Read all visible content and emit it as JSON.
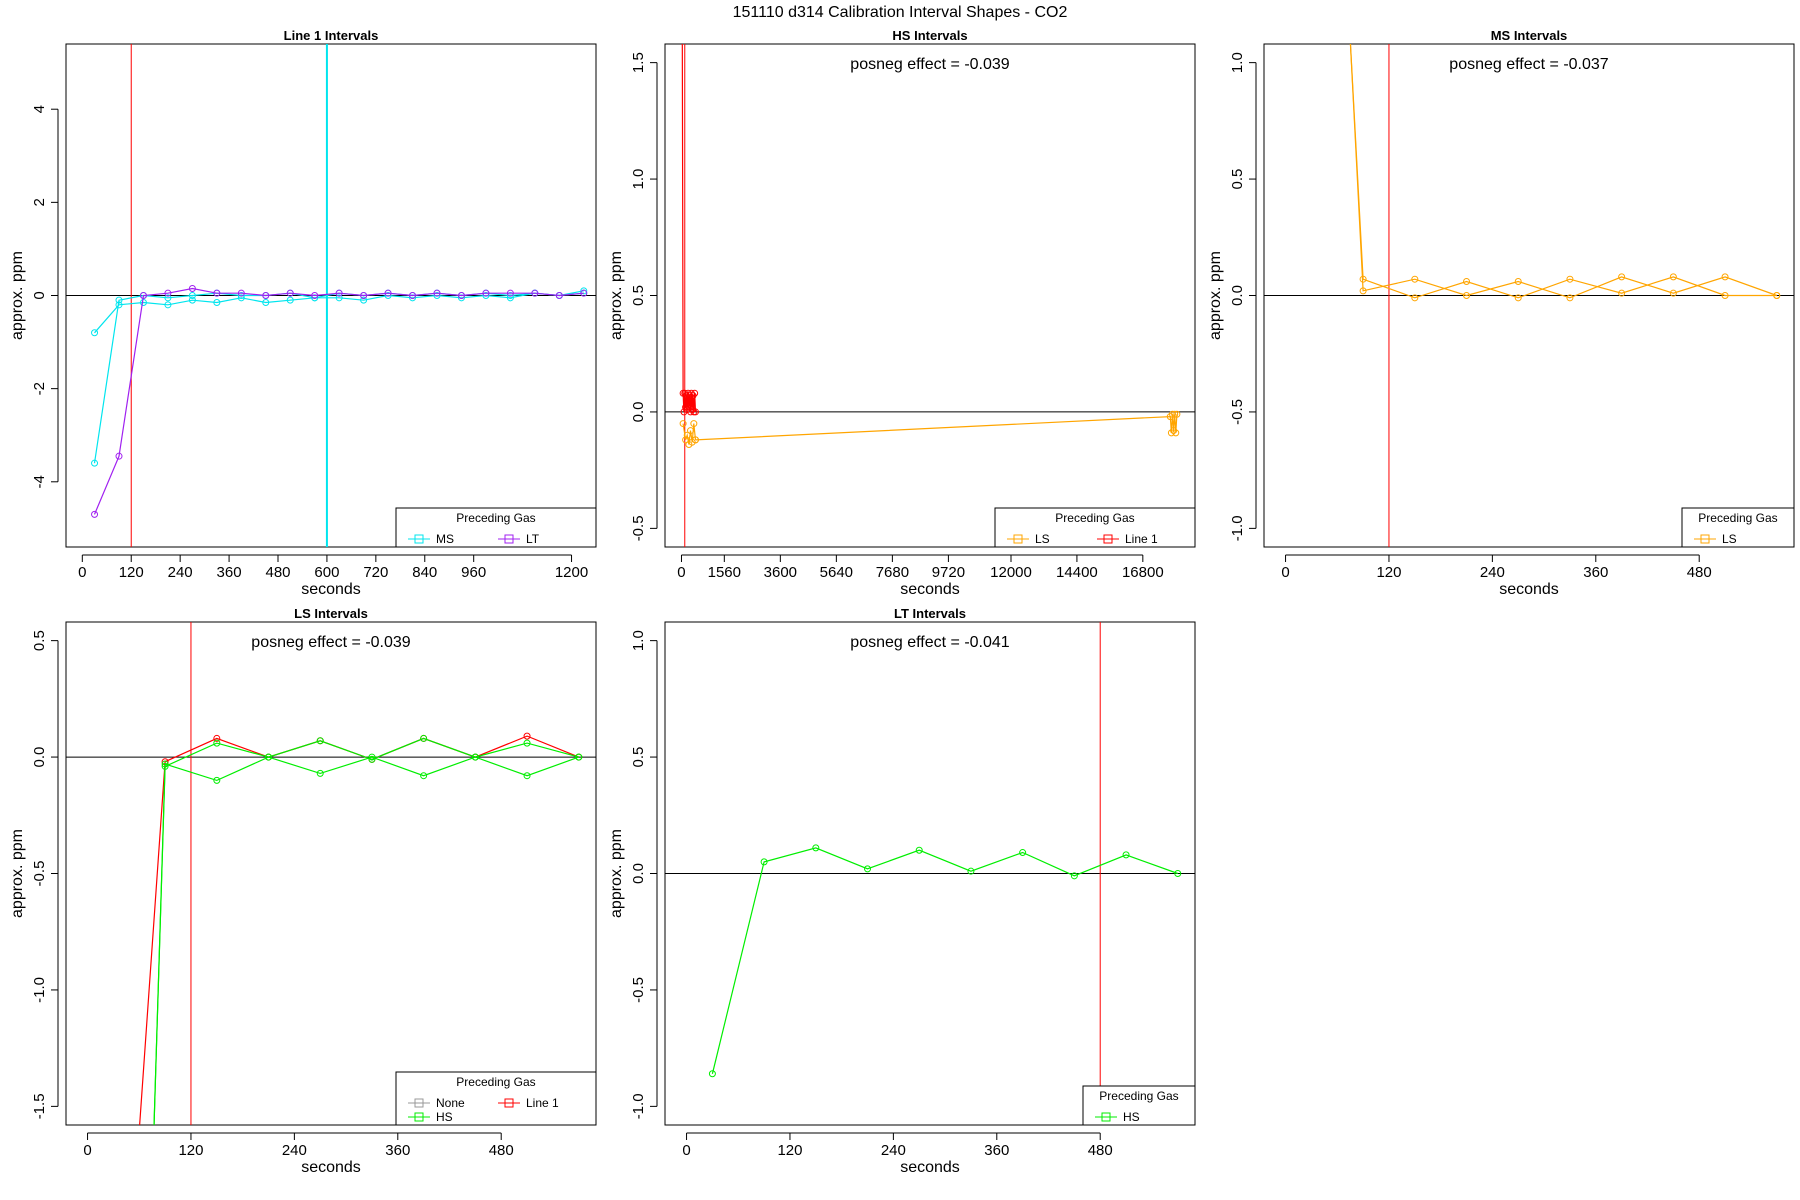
{
  "figure_title": "151110  d314   Calibration Interval Shapes - CO2",
  "chart_data": [
    {
      "type": "line",
      "title": "Line 1 Intervals",
      "xlabel": "seconds",
      "ylabel": "approx. ppm",
      "xlim": [
        -40,
        1260
      ],
      "ylim": [
        -5.4,
        5.4
      ],
      "xticks": [
        0,
        120,
        240,
        360,
        480,
        600,
        720,
        840,
        960,
        1200
      ],
      "yticks": [
        -4,
        -2,
        0,
        2,
        4
      ],
      "vlines": [
        {
          "x": 120,
          "color": "#ff0000"
        },
        {
          "x": 600,
          "color": "#00e5ee"
        }
      ],
      "hline": 0,
      "annotation": "",
      "legend": {
        "title": "Preceding Gas",
        "position": "bottom-right",
        "entries": [
          {
            "label": "MS",
            "color": "#00e5ee"
          },
          {
            "label": "LT",
            "color": "#a020f0"
          }
        ]
      },
      "series": [
        {
          "name": "MS-a",
          "color": "#00e5ee",
          "x": [
            30,
            90,
            150,
            210,
            270,
            330,
            390,
            450,
            510,
            570,
            630,
            690,
            750,
            810,
            870,
            930,
            990,
            1050,
            1110,
            1170,
            1230
          ],
          "y": [
            -0.8,
            -0.2,
            -0.15,
            -0.2,
            -0.1,
            -0.15,
            -0.05,
            -0.15,
            -0.1,
            -0.05,
            -0.05,
            -0.1,
            0,
            -0.05,
            0,
            -0.05,
            0,
            -0.05,
            0.05,
            0,
            0.05
          ]
        },
        {
          "name": "MS-b",
          "color": "#00e5ee",
          "x": [
            30,
            90,
            150,
            210,
            270,
            330,
            390,
            450,
            510,
            570,
            630,
            690,
            750,
            810,
            870,
            930,
            990,
            1050,
            1110,
            1170,
            1230
          ],
          "y": [
            -3.6,
            -0.1,
            0.0,
            -0.05,
            0.0,
            0.05,
            0.0,
            0.0,
            0.05,
            -0.05,
            0.05,
            0,
            0.05,
            0,
            0.05,
            0,
            0.05,
            0,
            0.05,
            0,
            0.1
          ]
        },
        {
          "name": "LT",
          "color": "#a020f0",
          "x": [
            30,
            90,
            150,
            210,
            270,
            330,
            390,
            450,
            510,
            570,
            630,
            690,
            750,
            810,
            870,
            930,
            990,
            1050,
            1110,
            1170,
            1230
          ],
          "y": [
            -4.7,
            -3.45,
            0.0,
            0.05,
            0.15,
            0.05,
            0.05,
            0.0,
            0.05,
            0.0,
            0.05,
            0.0,
            0.05,
            0.0,
            0.05,
            0.0,
            0.05,
            0.05,
            0.05,
            0.0,
            0.05
          ]
        }
      ]
    },
    {
      "type": "line",
      "title": "HS Intervals",
      "xlabel": "seconds",
      "ylabel": "approx. ppm",
      "xlim": [
        -600,
        18700
      ],
      "ylim": [
        -0.58,
        1.58
      ],
      "xticks": [
        0,
        1560,
        3600,
        5640,
        7680,
        9720,
        12000,
        14400,
        16800
      ],
      "yticks": [
        -0.5,
        0.0,
        0.5,
        1.0,
        1.5
      ],
      "vlines": [
        {
          "x": 120,
          "color": "#ff0000"
        }
      ],
      "hline": 0,
      "annotation": "posneg effect = -0.039",
      "legend": {
        "title": "Preceding Gas",
        "position": "bottom-right",
        "entries": [
          {
            "label": "LS",
            "color": "#ffa500"
          },
          {
            "label": "Line 1",
            "color": "#ff0000"
          }
        ]
      },
      "series": [
        {
          "name": "LS-a",
          "color": "#ffa500",
          "x": [
            60,
            150,
            210,
            270,
            330,
            390,
            450,
            510
          ],
          "y": [
            -0.05,
            -0.12,
            -0.1,
            -0.14,
            -0.08,
            -0.13,
            -0.05,
            -0.12
          ]
        },
        {
          "name": "LS-b",
          "color": "#ffa500",
          "x": [
            510,
            17800,
            17840,
            17880,
            17920,
            17960,
            18000,
            18040
          ],
          "y": [
            -0.12,
            -0.02,
            -0.09,
            -0.01,
            -0.08,
            -0.01,
            -0.09,
            -0.01
          ]
        },
        {
          "name": "Line 1",
          "color": "#ff0000",
          "x": [
            30,
            60,
            90,
            120,
            150,
            180,
            210,
            240,
            270,
            300,
            330,
            360,
            390,
            420,
            450,
            480,
            510
          ],
          "y": [
            1.6,
            0.08,
            0.0,
            0.08,
            0.02,
            0.07,
            0.01,
            0.08,
            0.02,
            0.07,
            0.0,
            0.08,
            0.01,
            0.07,
            0.0,
            0.08,
            0.0
          ]
        }
      ]
    },
    {
      "type": "line",
      "title": "MS Intervals",
      "xlabel": "seconds",
      "ylabel": "approx. ppm",
      "xlim": [
        -25,
        590
      ],
      "ylim": [
        -1.08,
        1.08
      ],
      "xticks": [
        0,
        120,
        240,
        360,
        480
      ],
      "yticks": [
        -1.0,
        -0.5,
        0.0,
        0.5,
        1.0
      ],
      "vlines": [
        {
          "x": 120,
          "color": "#ff0000"
        }
      ],
      "hline": 0,
      "annotation": "posneg effect = -0.037",
      "legend": {
        "title": "Preceding Gas",
        "position": "bottom-right",
        "entries": [
          {
            "label": "LS",
            "color": "#ffa500"
          }
        ]
      },
      "series": [
        {
          "name": "LS-a",
          "color": "#ffa500",
          "x": [
            75,
            90,
            150,
            210,
            270,
            330,
            390,
            450,
            510,
            570
          ],
          "y": [
            1.1,
            0.07,
            -0.01,
            0.06,
            -0.01,
            0.07,
            0.01,
            0.08,
            0.0,
            0.0
          ]
        },
        {
          "name": "LS-b",
          "color": "#ffa500",
          "x": [
            75,
            90,
            150,
            210,
            270,
            330,
            390,
            450,
            510,
            570
          ],
          "y": [
            1.1,
            0.02,
            0.07,
            0.0,
            0.06,
            -0.01,
            0.08,
            0.01,
            0.08,
            0.0
          ]
        }
      ]
    },
    {
      "type": "line",
      "title": "LS Intervals",
      "xlabel": "seconds",
      "ylabel": "approx. ppm",
      "xlim": [
        -25,
        590
      ],
      "ylim": [
        -1.58,
        0.58
      ],
      "xticks": [
        0,
        120,
        240,
        360,
        480
      ],
      "yticks": [
        -1.5,
        -1.0,
        -0.5,
        0.0,
        0.5
      ],
      "vlines": [
        {
          "x": 120,
          "color": "#ff0000"
        }
      ],
      "hline": 0,
      "annotation": "posneg effect = -0.039",
      "legend": {
        "title": "Preceding Gas",
        "position": "bottom-right",
        "entries": [
          {
            "label": "None",
            "color": "#999999"
          },
          {
            "label": "Line 1",
            "color": "#ff0000"
          },
          {
            "label": "HS",
            "color": "#00ee00"
          }
        ]
      },
      "series": [
        {
          "name": "Line 1",
          "color": "#ff0000",
          "x": [
            60,
            90,
            150,
            210,
            270,
            330,
            390,
            450,
            510,
            570
          ],
          "y": [
            -1.6,
            -0.02,
            0.08,
            0.0,
            0.07,
            -0.01,
            0.08,
            0.0,
            0.09,
            0.0
          ]
        },
        {
          "name": "HS-a",
          "color": "#00ee00",
          "x": [
            77,
            90,
            150,
            210,
            270,
            330,
            390,
            450,
            510,
            570
          ],
          "y": [
            -1.6,
            -0.04,
            0.06,
            0.0,
            0.07,
            -0.01,
            0.08,
            0.0,
            0.06,
            0.0
          ]
        },
        {
          "name": "HS-b",
          "color": "#00ee00",
          "x": [
            77,
            90,
            150,
            210,
            270,
            330,
            390,
            450,
            510,
            570
          ],
          "y": [
            -1.6,
            -0.03,
            -0.1,
            0.0,
            -0.07,
            0.0,
            -0.08,
            0.0,
            -0.08,
            0.0
          ]
        }
      ]
    },
    {
      "type": "line",
      "title": "LT Intervals",
      "xlabel": "seconds",
      "ylabel": "approx. ppm",
      "xlim": [
        -25,
        590
      ],
      "ylim": [
        -1.08,
        1.08
      ],
      "xticks": [
        0,
        120,
        240,
        360,
        480
      ],
      "yticks": [
        -1.0,
        -0.5,
        0.0,
        0.5,
        1.0
      ],
      "vlines": [
        {
          "x": 480,
          "color": "#ff0000"
        }
      ],
      "hline": 0,
      "annotation": "posneg effect = -0.041",
      "legend": {
        "title": "Preceding Gas",
        "position": "bottom-right",
        "entries": [
          {
            "label": "HS",
            "color": "#00ee00"
          }
        ]
      },
      "series": [
        {
          "name": "HS",
          "color": "#00ee00",
          "x": [
            30,
            90,
            150,
            210,
            270,
            330,
            390,
            450,
            510,
            570
          ],
          "y": [
            -0.86,
            0.05,
            0.11,
            0.02,
            0.1,
            0.01,
            0.09,
            -0.01,
            0.08,
            0.0
          ]
        }
      ]
    }
  ]
}
